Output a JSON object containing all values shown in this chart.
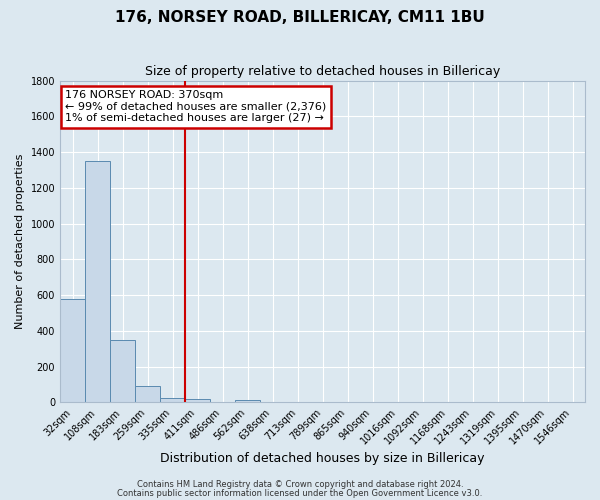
{
  "title_line1": "176, NORSEY ROAD, BILLERICAY, CM11 1BU",
  "title_line2": "Size of property relative to detached houses in Billericay",
  "xlabel": "Distribution of detached houses by size in Billericay",
  "ylabel": "Number of detached properties",
  "footer_line1": "Contains HM Land Registry data © Crown copyright and database right 2024.",
  "footer_line2": "Contains public sector information licensed under the Open Government Licence v3.0.",
  "bin_labels": [
    "32sqm",
    "108sqm",
    "183sqm",
    "259sqm",
    "335sqm",
    "411sqm",
    "486sqm",
    "562sqm",
    "638sqm",
    "713sqm",
    "789sqm",
    "865sqm",
    "940sqm",
    "1016sqm",
    "1092sqm",
    "1168sqm",
    "1243sqm",
    "1319sqm",
    "1395sqm",
    "1470sqm",
    "1546sqm"
  ],
  "bin_values": [
    580,
    1350,
    350,
    90,
    25,
    20,
    0,
    15,
    0,
    0,
    0,
    0,
    0,
    0,
    0,
    0,
    0,
    0,
    0,
    0,
    0
  ],
  "bar_color": "#c8d8e8",
  "bar_edge_color": "#5a8ab0",
  "red_line_bin": 4,
  "annotation_title": "176 NORSEY ROAD: 370sqm",
  "annotation_line2": "← 99% of detached houses are smaller (2,376)",
  "annotation_line3": "1% of semi-detached houses are larger (27) →",
  "annotation_box_facecolor": "#ffffff",
  "annotation_box_edgecolor": "#cc0000",
  "ylim": [
    0,
    1800
  ],
  "yticks": [
    0,
    200,
    400,
    600,
    800,
    1000,
    1200,
    1400,
    1600,
    1800
  ],
  "fig_bg_color": "#dce8f0",
  "ax_bg_color": "#dce8f0",
  "grid_color": "#ffffff",
  "title1_fontsize": 11,
  "title2_fontsize": 9,
  "xlabel_fontsize": 9,
  "ylabel_fontsize": 8,
  "tick_fontsize": 7,
  "footer_fontsize": 6,
  "ann_fontsize": 8
}
